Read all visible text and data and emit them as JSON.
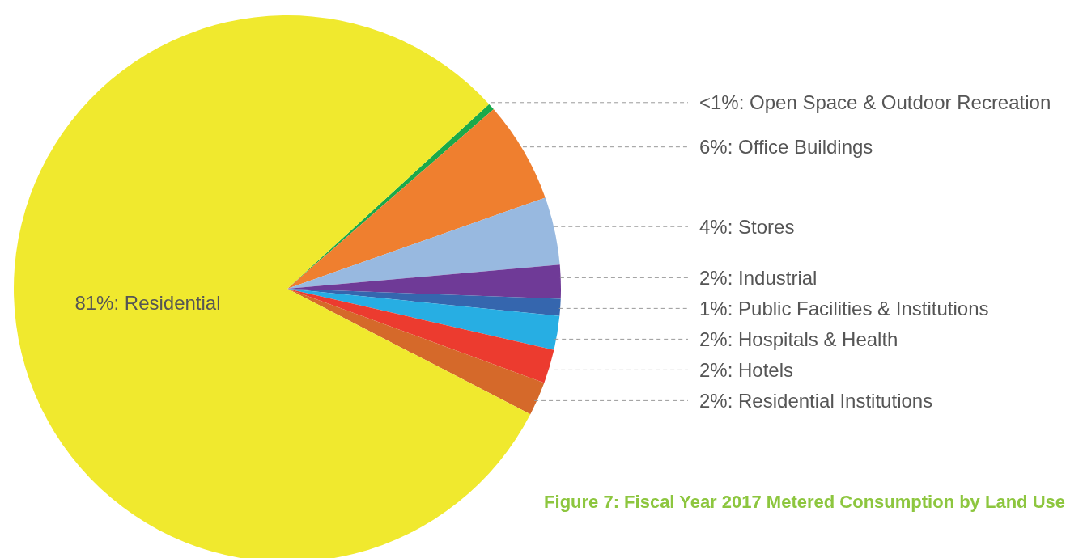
{
  "chart_data": {
    "type": "pie",
    "title": "Figure 7: Fiscal Year 2017 Metered Consumption by Land Use",
    "categories": [
      "Open Space & Outdoor Recreation",
      "Office Buildings",
      "Stores",
      "Industrial",
      "Public Facilities & Institutions",
      "Hospitals & Health",
      "Hotels",
      "Residential Institutions",
      "Residential"
    ],
    "values": [
      0.4,
      6,
      4,
      2,
      1,
      2,
      2,
      2,
      80.6
    ],
    "value_labels": [
      "<1%",
      "6%",
      "4%",
      "2%",
      "1%",
      "2%",
      "2%",
      "2%",
      "81%"
    ],
    "colors": [
      "#1aaa4a",
      "#ef7f2f",
      "#98b9e0",
      "#6f3a97",
      "#3566ae",
      "#27aee3",
      "#ec3b2f",
      "#d5692a",
      "#f0e92e"
    ],
    "legend": false
  }
}
